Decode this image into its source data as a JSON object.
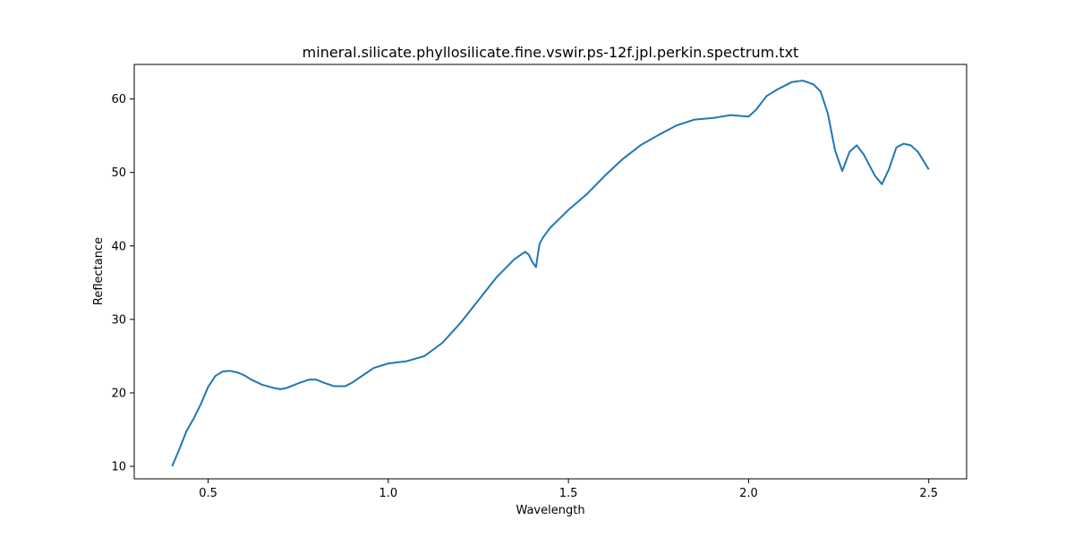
{
  "chart_data": {
    "type": "line",
    "title": "mineral.silicate.phyllosilicate.fine.vswir.ps-12f.jpl.perkin.spectrum.txt",
    "xlabel": "Wavelength",
    "ylabel": "Reflectance",
    "xlim": [
      0.295,
      2.605
    ],
    "ylim": [
      8.3,
      64.7
    ],
    "xticks": [
      0.5,
      1.0,
      1.5,
      2.0,
      2.5
    ],
    "xtick_labels": [
      "0.5",
      "1.0",
      "1.5",
      "2.0",
      "2.5"
    ],
    "yticks": [
      10,
      20,
      30,
      40,
      50,
      60
    ],
    "ytick_labels": [
      "10",
      "20",
      "30",
      "40",
      "50",
      "60"
    ],
    "grid": false,
    "line_color": "#1f77b4",
    "series": [
      {
        "x": [
          0.4,
          0.42,
          0.44,
          0.46,
          0.48,
          0.5,
          0.52,
          0.54,
          0.56,
          0.58,
          0.6,
          0.62,
          0.65,
          0.68,
          0.7,
          0.72,
          0.75,
          0.78,
          0.8,
          0.82,
          0.85,
          0.88,
          0.9,
          0.93,
          0.96,
          1.0,
          1.05,
          1.1,
          1.15,
          1.2,
          1.25,
          1.3,
          1.35,
          1.38,
          1.39,
          1.4,
          1.41,
          1.415,
          1.42,
          1.43,
          1.45,
          1.5,
          1.55,
          1.6,
          1.65,
          1.7,
          1.75,
          1.8,
          1.85,
          1.9,
          1.95,
          2.0,
          2.02,
          2.05,
          2.08,
          2.1,
          2.12,
          2.15,
          2.18,
          2.2,
          2.22,
          2.24,
          2.26,
          2.28,
          2.3,
          2.32,
          2.35,
          2.37,
          2.39,
          2.41,
          2.43,
          2.45,
          2.47,
          2.5
        ],
        "y": [
          10.0,
          12.3,
          14.8,
          16.5,
          18.5,
          20.8,
          22.3,
          22.9,
          23.0,
          22.8,
          22.4,
          21.8,
          21.1,
          20.7,
          20.5,
          20.7,
          21.3,
          21.8,
          21.8,
          21.4,
          20.9,
          20.9,
          21.4,
          22.4,
          23.4,
          24.0,
          24.3,
          25.0,
          26.8,
          29.5,
          32.6,
          35.7,
          38.2,
          39.2,
          38.8,
          37.8,
          37.1,
          38.8,
          40.3,
          41.2,
          42.5,
          44.9,
          47.0,
          49.5,
          51.8,
          53.7,
          55.1,
          56.4,
          57.2,
          57.4,
          57.8,
          57.6,
          58.5,
          60.4,
          61.3,
          61.8,
          62.3,
          62.5,
          62.0,
          61.0,
          58.0,
          53.0,
          50.2,
          52.8,
          53.7,
          52.4,
          49.6,
          48.4,
          50.5,
          53.4,
          53.9,
          53.7,
          52.8,
          50.4
        ]
      }
    ]
  }
}
